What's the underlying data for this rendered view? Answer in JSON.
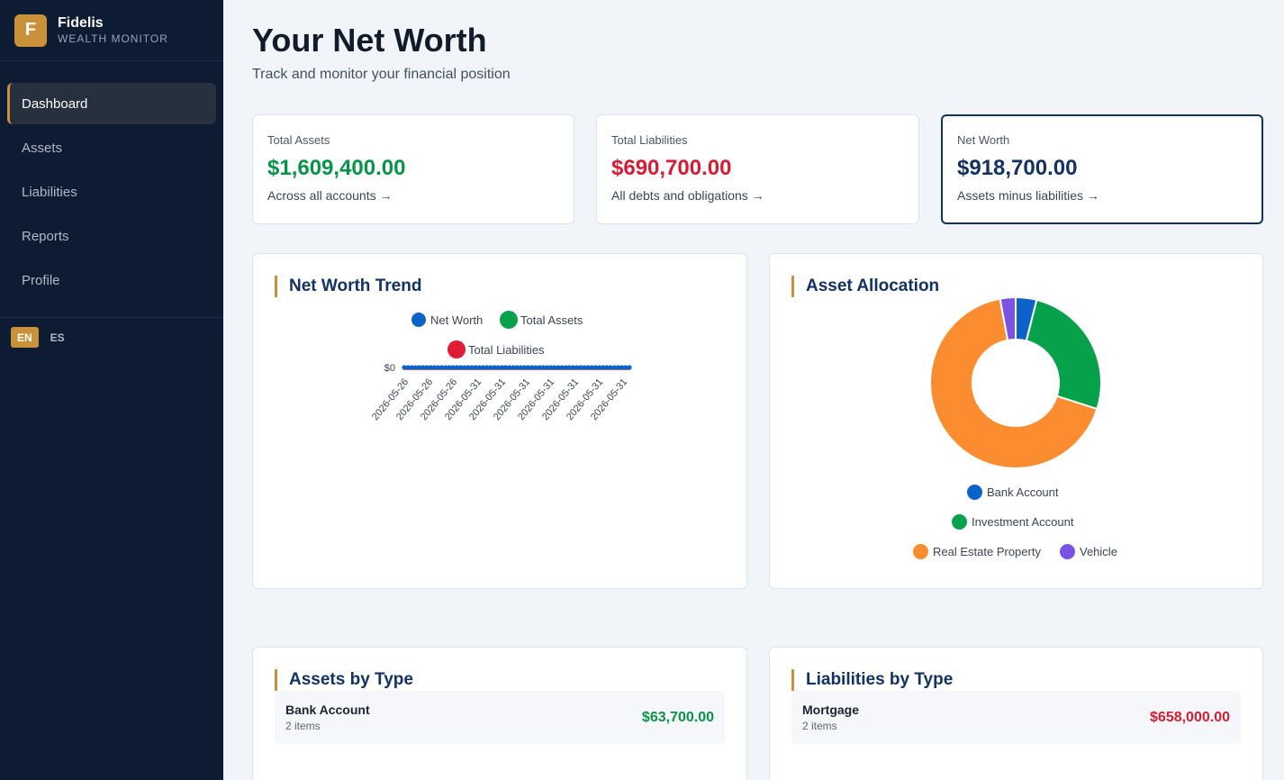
{
  "brand": {
    "initial": "F",
    "name": "Fidelis",
    "subtitle": "WEALTH MONITOR"
  },
  "nav": {
    "items": [
      {
        "label": "Dashboard",
        "active": true
      },
      {
        "label": "Assets",
        "active": false
      },
      {
        "label": "Liabilities",
        "active": false
      },
      {
        "label": "Reports",
        "active": false
      },
      {
        "label": "Profile",
        "active": false
      }
    ]
  },
  "languages": {
    "en": "EN",
    "es": "ES",
    "selected": "EN"
  },
  "page": {
    "title": "Your Net Worth",
    "subtitle": "Track and monitor your financial position"
  },
  "stats": {
    "assets": {
      "label": "Total Assets",
      "value": "$1,609,400.00",
      "foot": "Across all accounts →"
    },
    "liabilities": {
      "label": "Total Liabilities",
      "value": "$690,700.00",
      "foot": "All debts and obligations →"
    },
    "net": {
      "label": "Net Worth",
      "value": "$918,700.00",
      "foot": "Assets minus liabilities →"
    }
  },
  "trend": {
    "title": "Net Worth Trend",
    "legend": {
      "net": "Net Worth",
      "assets": "Total Assets",
      "liabilities": "Total Liabilities"
    },
    "colors": {
      "net": "#0b63c9",
      "assets": "#06a14a",
      "liabilities": "#e01b32"
    }
  },
  "allocation": {
    "title": "Asset Allocation",
    "legend": {
      "bank": "Bank Account",
      "investment": "Investment Account",
      "realestate": "Real Estate Property",
      "vehicle": "Vehicle"
    }
  },
  "assets_by_type": {
    "title": "Assets by Type",
    "rows": [
      {
        "name": "Bank Account",
        "count": "2 items",
        "value": "$63,700.00"
      }
    ]
  },
  "liabilities_by_type": {
    "title": "Liabilities by Type",
    "rows": [
      {
        "name": "Mortgage",
        "count": "2 items",
        "value": "$658,000.00"
      }
    ]
  },
  "chart_data": [
    {
      "type": "line",
      "title": "Net Worth Trend",
      "y_tick_labels": [
        "$0"
      ],
      "x_tick_labels": [
        "2026-05-26",
        "2026-05-26",
        "2026-05-26",
        "2026-05-31",
        "2026-05-31",
        "2026-05-31",
        "2026-05-31",
        "2026-05-31",
        "2026-05-31",
        "2026-05-31"
      ],
      "series": [
        {
          "name": "Net Worth",
          "color": "#0b63c9",
          "values": [
            0,
            0,
            0,
            0,
            0,
            0,
            0,
            0,
            0,
            0,
            0,
            0,
            0,
            0,
            0,
            0,
            0,
            0,
            0,
            0,
            0,
            0,
            0,
            0,
            0,
            0,
            0,
            0,
            0,
            0,
            0,
            0,
            0,
            0,
            0,
            0,
            0,
            0,
            0,
            0,
            0,
            0,
            0,
            0,
            0,
            0,
            0,
            0,
            0,
            0,
            0,
            0,
            0,
            0,
            0,
            0,
            0,
            0,
            0,
            0,
            0
          ]
        },
        {
          "name": "Total Assets",
          "color": "#06a14a",
          "values": [
            0,
            0,
            0,
            0,
            0,
            0,
            0,
            0,
            0,
            0,
            0,
            0,
            0,
            0,
            0,
            0,
            0,
            0,
            0,
            0,
            0,
            0,
            0,
            0,
            0,
            0,
            0,
            0,
            0,
            0,
            0,
            0,
            0,
            0,
            0,
            0,
            0,
            0,
            0,
            0,
            0,
            0,
            0,
            0,
            0,
            0,
            0,
            0,
            0,
            0,
            0,
            0,
            0,
            0,
            0,
            0,
            0,
            0,
            0,
            0,
            0
          ]
        },
        {
          "name": "Total Liabilities",
          "color": "#e01b32",
          "values": [
            0,
            0,
            0,
            0,
            0,
            0,
            0,
            0,
            0,
            0,
            0,
            0,
            0,
            0,
            0,
            0,
            0,
            0,
            0,
            0,
            0,
            0,
            0,
            0,
            0,
            0,
            0,
            0,
            0,
            0,
            0,
            0,
            0,
            0,
            0,
            0,
            0,
            0,
            0,
            0,
            0,
            0,
            0,
            0,
            0,
            0,
            0,
            0,
            0,
            0,
            0,
            0,
            0,
            0,
            0,
            0,
            0,
            0,
            0,
            0,
            0
          ]
        }
      ],
      "legend_position": "top"
    },
    {
      "type": "pie",
      "title": "Asset Allocation",
      "donut": true,
      "categories": [
        "Bank Account",
        "Investment Account",
        "Real Estate Property",
        "Vehicle"
      ],
      "values": [
        63700,
        418400,
        1080000,
        47300
      ],
      "colors": [
        "#0b63c9",
        "#06a14a",
        "#fb8c2f",
        "#7b52e6"
      ],
      "legend_position": "bottom"
    }
  ]
}
